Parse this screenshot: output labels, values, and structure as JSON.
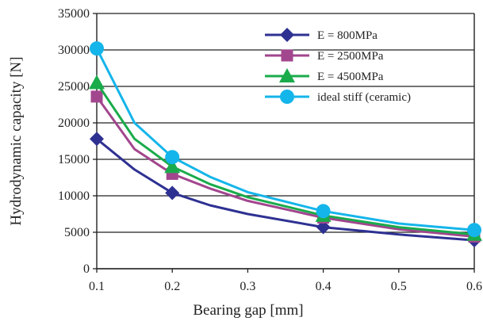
{
  "chart_data": {
    "type": "line",
    "title": "",
    "xlabel": "Bearing gap [mm]",
    "ylabel": "Hydrodynamic capacity [N]",
    "xlim": [
      0.1,
      0.6
    ],
    "ylim": [
      0,
      35000
    ],
    "x_ticks": [
      "0.1",
      "0.2",
      "0.3",
      "0.4",
      "0.5",
      "0.6"
    ],
    "y_ticks": [
      "0",
      "5000",
      "10000",
      "15000",
      "20000",
      "25000",
      "30000",
      "35000"
    ],
    "grid": "horizontal",
    "legend_position": "top-right",
    "marker_x": [
      0.1,
      0.2,
      0.4,
      0.6
    ],
    "series": [
      {
        "name": "E = 800MPa",
        "color": "#2e3192",
        "marker": "diamond",
        "x": [
          0.1,
          0.15,
          0.2,
          0.25,
          0.3,
          0.4,
          0.5,
          0.6
        ],
        "values": [
          17800,
          13600,
          10400,
          8700,
          7500,
          5700,
          4700,
          3900
        ]
      },
      {
        "name": "E = 2500MPa",
        "color": "#a2468e",
        "marker": "square",
        "x": [
          0.1,
          0.15,
          0.2,
          0.25,
          0.3,
          0.4,
          0.5,
          0.6
        ],
        "values": [
          23600,
          16400,
          13000,
          11000,
          9300,
          7000,
          5400,
          4400
        ]
      },
      {
        "name": "E = 4500MPa",
        "color": "#1aab4b",
        "marker": "triangle",
        "x": [
          0.1,
          0.15,
          0.2,
          0.25,
          0.3,
          0.4,
          0.5,
          0.6
        ],
        "values": [
          25500,
          17800,
          14000,
          11600,
          9800,
          7300,
          5700,
          4700
        ]
      },
      {
        "name": "ideal stiff (ceramic)",
        "color": "#14b5ea",
        "marker": "circle",
        "x": [
          0.1,
          0.15,
          0.2,
          0.25,
          0.3,
          0.4,
          0.5,
          0.6
        ],
        "values": [
          30200,
          20000,
          15300,
          12600,
          10500,
          7900,
          6200,
          5300
        ]
      }
    ]
  }
}
